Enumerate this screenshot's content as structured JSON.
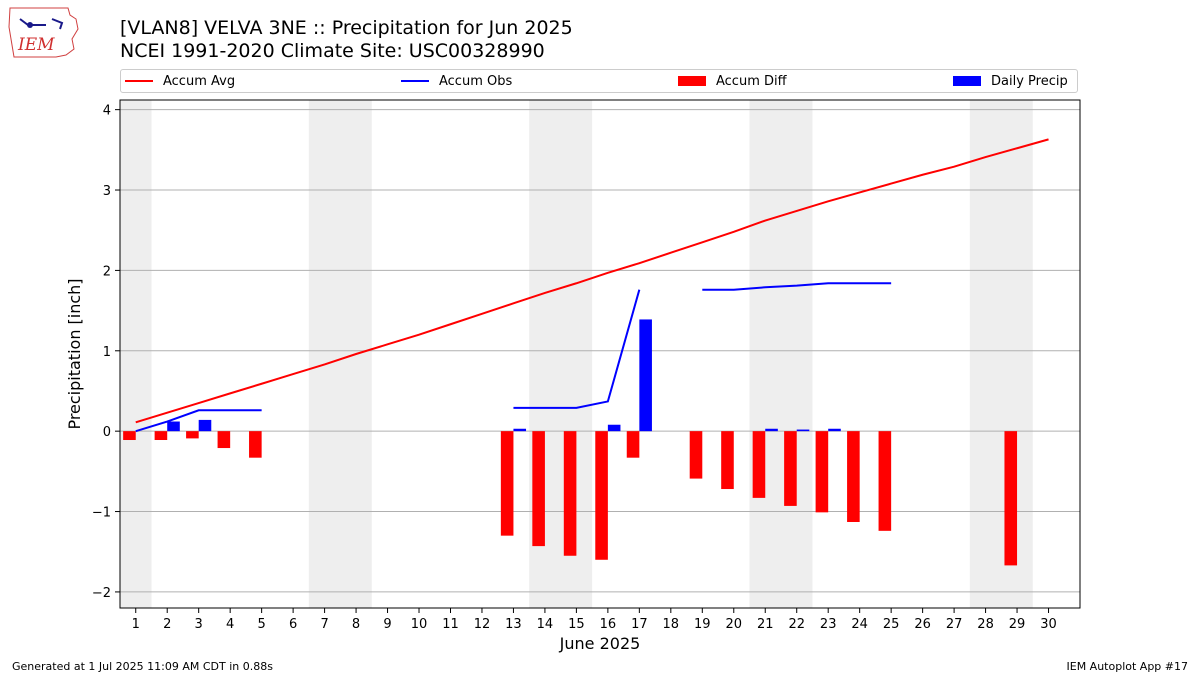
{
  "header": {
    "title_line1": "[VLAN8] VELVA 3NE :: Precipitation for Jun 2025",
    "title_line2": "NCEI 1991-2020 Climate Site: USC00328990",
    "logo_text": "IEM"
  },
  "footer": {
    "generated": "Generated at 1 Jul 2025 11:09 AM CDT in 0.88s",
    "app": "IEM Autoplot App #17"
  },
  "colors": {
    "accum_avg": "#ff0000",
    "accum_obs": "#0000ff",
    "accum_diff": "#ff0000",
    "daily_precip": "#0000ff",
    "weekend_shade": "#eeeeee",
    "grid": "#b0b0b0"
  },
  "chart_data": {
    "type": "bar",
    "xlabel": "June 2025",
    "ylabel": "Precipitation [inch]",
    "xlim": [
      0.5,
      31
    ],
    "ylim": [
      -2.2,
      4.12
    ],
    "yticks": [
      -2,
      -1,
      0,
      1,
      2,
      3,
      4
    ],
    "yticklabels": [
      "−2",
      "−1",
      "0",
      "1",
      "2",
      "3",
      "4"
    ],
    "grid": true,
    "legend_placement": "top",
    "days": [
      1,
      2,
      3,
      4,
      5,
      6,
      7,
      8,
      9,
      10,
      11,
      12,
      13,
      14,
      15,
      16,
      17,
      18,
      19,
      20,
      21,
      22,
      23,
      24,
      25,
      26,
      27,
      28,
      29,
      30
    ],
    "weekend_shading": [
      [
        0.5,
        1.5
      ],
      [
        6.5,
        8.5
      ],
      [
        13.5,
        15.5
      ],
      [
        20.5,
        22.5
      ],
      [
        27.5,
        29.5
      ]
    ],
    "series": [
      {
        "name": "Accum Avg",
        "kind": "line",
        "x": [
          1,
          2,
          3,
          4,
          5,
          6,
          7,
          8,
          9,
          10,
          11,
          12,
          13,
          14,
          15,
          16,
          17,
          18,
          19,
          20,
          21,
          22,
          23,
          24,
          25,
          26,
          27,
          28,
          29,
          30
        ],
        "values": [
          0.11,
          0.23,
          0.35,
          0.47,
          0.59,
          0.71,
          0.83,
          0.96,
          1.08,
          1.2,
          1.33,
          1.46,
          1.59,
          1.72,
          1.84,
          1.97,
          2.09,
          2.22,
          2.35,
          2.48,
          2.62,
          2.74,
          2.86,
          2.97,
          3.08,
          3.19,
          3.29,
          3.41,
          3.52,
          3.63
        ]
      },
      {
        "name": "Accum Obs",
        "kind": "line",
        "segments": [
          {
            "x": [
              1,
              2,
              3,
              4,
              5
            ],
            "values": [
              0.0,
              0.12,
              0.26,
              0.26,
              0.26
            ]
          },
          {
            "x": [
              13,
              14,
              15,
              16,
              17
            ],
            "values": [
              0.29,
              0.29,
              0.29,
              0.37,
              1.76
            ]
          },
          {
            "x": [
              19,
              20,
              21,
              22,
              23,
              24,
              25
            ],
            "values": [
              1.76,
              1.76,
              1.79,
              1.81,
              1.84,
              1.84,
              1.84
            ]
          }
        ]
      },
      {
        "name": "Accum Diff",
        "kind": "bar",
        "x": [
          1,
          2,
          3,
          4,
          5,
          13,
          14,
          15,
          16,
          17,
          19,
          20,
          21,
          22,
          23,
          24,
          25,
          29
        ],
        "values": [
          -0.11,
          -0.11,
          -0.09,
          -0.21,
          -0.33,
          -1.3,
          -1.43,
          -1.55,
          -1.6,
          -0.33,
          -0.59,
          -0.72,
          -0.83,
          -0.93,
          -1.01,
          -1.13,
          -1.24,
          -1.67
        ]
      },
      {
        "name": "Daily Precip",
        "kind": "bar",
        "x": [
          2,
          3,
          13,
          16,
          17,
          21,
          22,
          23
        ],
        "values": [
          0.12,
          0.14,
          0.03,
          0.08,
          1.39,
          0.03,
          0.02,
          0.03
        ]
      }
    ]
  }
}
